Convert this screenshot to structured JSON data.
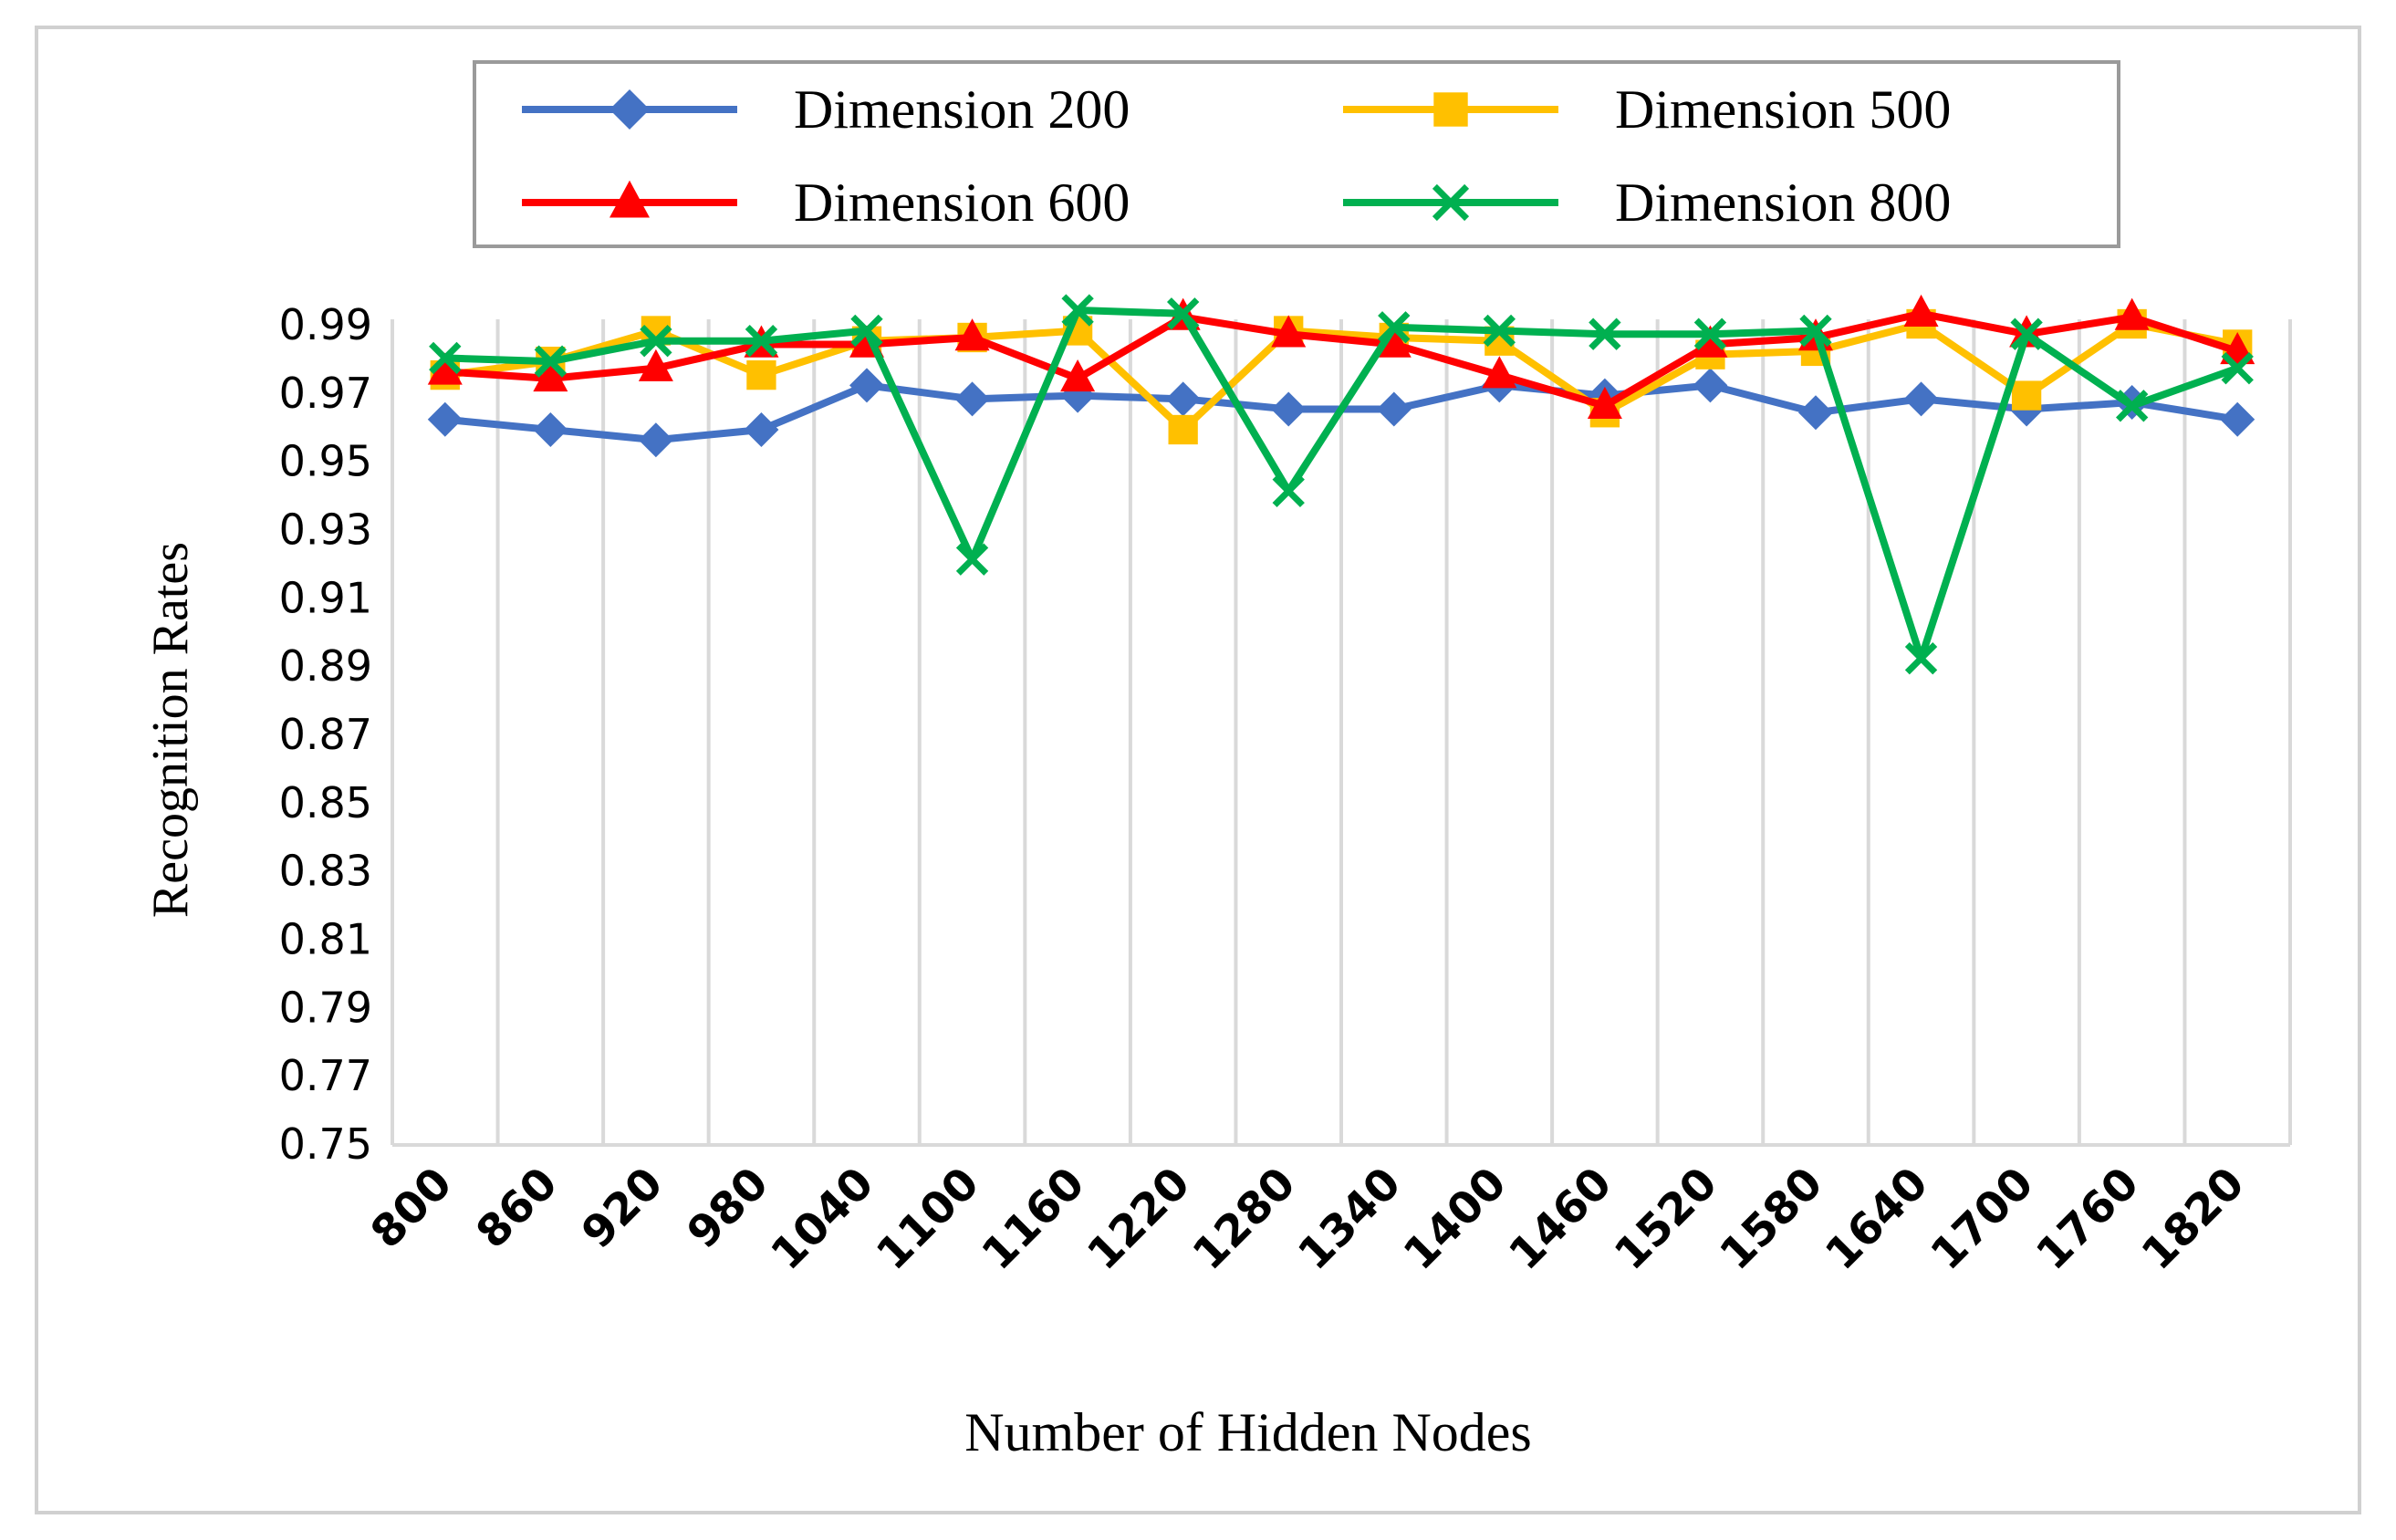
{
  "chart_data": {
    "type": "line",
    "title": "",
    "xlabel": "Number of Hidden Nodes",
    "ylabel": "Recognition Rates",
    "categories": [
      "800",
      "860",
      "920",
      "980",
      "1040",
      "1100",
      "1160",
      "1220",
      "1280",
      "1340",
      "1400",
      "1460",
      "1520",
      "1580",
      "1640",
      "1700",
      "1760",
      "1820"
    ],
    "yticks": [
      "0.75",
      "0.77",
      "0.79",
      "0.81",
      "0.83",
      "0.85",
      "0.87",
      "0.89",
      "0.91",
      "0.93",
      "0.95",
      "0.97",
      "0.99"
    ],
    "ylim": [
      0.75,
      0.99
    ],
    "grid": "vertical",
    "legend_position": "top",
    "series": [
      {
        "name": "Dimension 200",
        "color": "#4472C4",
        "marker": "diamond",
        "values": [
          0.962,
          0.959,
          0.956,
          0.959,
          0.972,
          0.968,
          0.969,
          0.968,
          0.965,
          0.965,
          0.972,
          0.969,
          0.972,
          0.964,
          0.968,
          0.965,
          0.967,
          0.962
        ]
      },
      {
        "name": "Dimension 500",
        "color": "#FFC000",
        "marker": "square",
        "values": [
          0.975,
          0.979,
          0.988,
          0.975,
          0.985,
          0.986,
          0.988,
          0.959,
          0.988,
          0.986,
          0.985,
          0.964,
          0.981,
          0.982,
          0.99,
          0.969,
          0.99,
          0.984
        ]
      },
      {
        "name": "Dimension 600",
        "color": "#FF0000",
        "marker": "triangle",
        "values": [
          0.976,
          0.974,
          0.977,
          0.984,
          0.984,
          0.986,
          0.974,
          0.992,
          0.987,
          0.984,
          0.975,
          0.966,
          0.984,
          0.986,
          0.993,
          0.987,
          0.992,
          0.982
        ]
      },
      {
        "name": "Dimension 800",
        "color": "#00B050",
        "marker": "x",
        "values": [
          0.98,
          0.979,
          0.985,
          0.985,
          0.988,
          0.921,
          0.994,
          0.993,
          0.941,
          0.989,
          0.988,
          0.987,
          0.987,
          0.988,
          0.892,
          0.987,
          0.966,
          0.977
        ]
      }
    ]
  }
}
